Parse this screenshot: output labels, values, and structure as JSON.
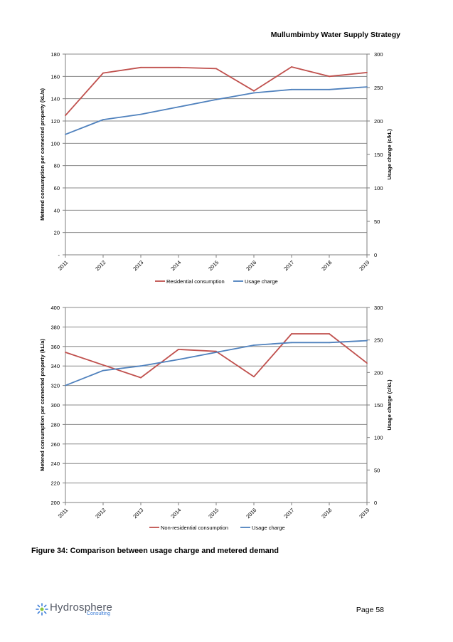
{
  "header": {
    "title": "Mullumbimby Water Supply Strategy"
  },
  "colors": {
    "consumption": "#c0504d",
    "usage": "#4f81bd",
    "grid": "#888888",
    "axis": "#7f7f7f"
  },
  "chart_data": [
    {
      "type": "line",
      "categories": [
        "2011",
        "2012",
        "2013",
        "2014",
        "2015",
        "2016",
        "2017",
        "2018",
        "2019"
      ],
      "ylabel": "Metered consumption per connected property (kL/a)",
      "y2label": "Usage charge (c/kL)",
      "ylim": [
        0,
        180
      ],
      "yticks": [
        "-",
        "20",
        "40",
        "60",
        "80",
        "100",
        "120",
        "140",
        "160",
        "180"
      ],
      "ytick_values": [
        0,
        20,
        40,
        60,
        80,
        100,
        120,
        140,
        160,
        180
      ],
      "y2lim": [
        0,
        300
      ],
      "y2ticks": [
        0,
        50,
        100,
        150,
        200,
        250,
        300
      ],
      "grid": true,
      "legend_position": "bottom",
      "series": [
        {
          "name": "Residential consumption",
          "axis": "left",
          "color": "#c0504d",
          "values": [
            125,
            163,
            168,
            168,
            167,
            147,
            168.5,
            160,
            163.5
          ]
        },
        {
          "name": "Usage charge",
          "axis": "right",
          "color": "#4f81bd",
          "values": [
            180,
            202,
            210,
            221,
            232,
            242,
            247,
            247,
            251
          ]
        }
      ]
    },
    {
      "type": "line",
      "categories": [
        "2011",
        "2012",
        "2013",
        "2014",
        "2015",
        "2016",
        "2017",
        "2018",
        "2019"
      ],
      "ylabel": "Metered consumption per connected property (kL/a)",
      "y2label": "Usage charge (c/kL)",
      "ylim": [
        200,
        400
      ],
      "yticks": [
        "200",
        "220",
        "240",
        "260",
        "280",
        "300",
        "320",
        "340",
        "360",
        "380",
        "400"
      ],
      "ytick_values": [
        200,
        220,
        240,
        260,
        280,
        300,
        320,
        340,
        360,
        380,
        400
      ],
      "y2lim": [
        0,
        300
      ],
      "y2ticks": [
        0,
        50,
        100,
        150,
        200,
        250,
        300
      ],
      "grid": true,
      "legend_position": "bottom",
      "series": [
        {
          "name": "Non-residential consumption",
          "axis": "left",
          "color": "#c0504d",
          "values": [
            354,
            341,
            328,
            357,
            355,
            329,
            373,
            373,
            343
          ]
        },
        {
          "name": "Usage charge",
          "axis": "right",
          "color": "#4f81bd",
          "values": [
            180,
            203,
            210,
            220,
            231,
            242,
            246,
            246,
            249
          ]
        }
      ]
    }
  ],
  "caption": "Figure 34: Comparison between usage charge and metered demand",
  "footer": {
    "logo_word": "Hydrosphere",
    "logo_sub": "Consulting",
    "page": "Page 58"
  }
}
